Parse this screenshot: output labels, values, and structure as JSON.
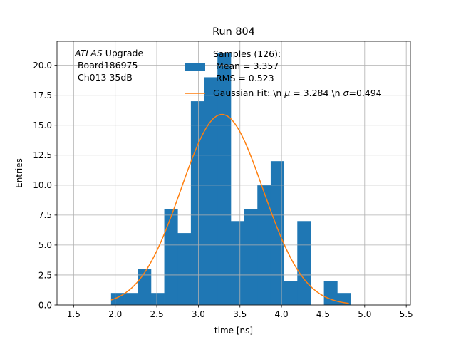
{
  "chart_data": {
    "type": "bar",
    "title": "Run 804",
    "xlabel": "time [ns]",
    "ylabel": "Entries",
    "xlim": [
      1.3,
      5.55
    ],
    "ylim": [
      0,
      22
    ],
    "xticks": [
      "1.5",
      "2.0",
      "2.5",
      "3.0",
      "3.5",
      "4.0",
      "4.5",
      "5.0",
      "5.5"
    ],
    "xtick_values": [
      1.5,
      2.0,
      2.5,
      3.0,
      3.5,
      4.0,
      4.5,
      5.0,
      5.5
    ],
    "yticks": [
      "0.0",
      "2.5",
      "5.0",
      "7.5",
      "10.0",
      "12.5",
      "15.0",
      "17.5",
      "20.0"
    ],
    "ytick_values": [
      0,
      2.5,
      5,
      7.5,
      10,
      12.5,
      15,
      17.5,
      20
    ],
    "grid": true,
    "bar_color": "#1f77b4",
    "fit_color": "#ff7f0e",
    "annotation": {
      "italic": "ATLAS",
      "rest": " Upgrade",
      "line2": " Board186975",
      "line3": " Ch013 35dB"
    },
    "legend": {
      "placement": "top-center",
      "samples_line1": "Samples (126):",
      "samples_line2": " Mean = 3.357",
      "samples_line3": " RMS = 0.523",
      "fit_prefix": "Gaussian Fit: \\n ",
      "fit_mu": "μ",
      "fit_mid": " = 3.284 \\n ",
      "fit_sigma": "σ",
      "fit_suffix": "=0.494"
    },
    "bins": {
      "start": 1.95,
      "width": 0.16,
      "values": [
        1,
        1,
        3,
        1,
        8,
        6,
        17,
        19,
        21,
        7,
        8,
        10,
        12,
        2,
        7,
        0,
        2,
        1
      ]
    },
    "fit": {
      "mu": 3.284,
      "sigma": 0.494,
      "amplitude": 15.9,
      "x_range": [
        1.95,
        4.81
      ]
    }
  }
}
